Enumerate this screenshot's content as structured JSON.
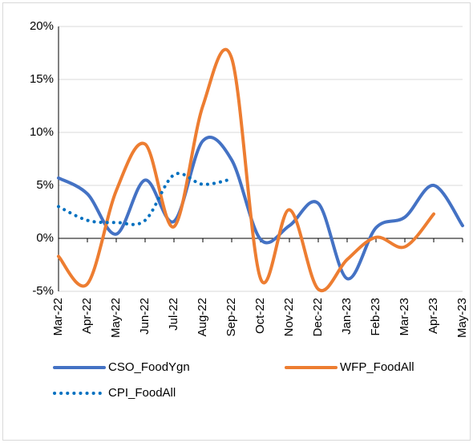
{
  "chart_data": {
    "type": "line",
    "categories": [
      "Mar-22",
      "Apr-22",
      "May-22",
      "Jun-22",
      "Jul-22",
      "Aug-22",
      "Sep-22",
      "Oct-22",
      "Nov-22",
      "Dec-22",
      "Jan-23",
      "Feb-23",
      "Mar-23",
      "Apr-23",
      "May-23"
    ],
    "series": [
      {
        "name": "CSO_FoodYgn",
        "color": "#4472c4",
        "style": "solid",
        "values": [
          5.7,
          4.2,
          0.4,
          5.5,
          1.6,
          9.2,
          7.4,
          -0.1,
          1.2,
          3.3,
          -3.8,
          1.0,
          2.0,
          5.0,
          1.2
        ]
      },
      {
        "name": "WFP_FoodAll",
        "color": "#ed7d31",
        "style": "solid",
        "values": [
          -1.7,
          -4.3,
          4.5,
          8.9,
          1.1,
          12.5,
          17.0,
          -3.8,
          2.7,
          -4.8,
          -2.0,
          0.1,
          -0.8,
          2.3,
          null
        ]
      },
      {
        "name": "CPI_FoodAll",
        "color": "#0070c0",
        "style": "dotted",
        "values": [
          3.0,
          1.7,
          1.5,
          1.7,
          6.0,
          5.1,
          5.6,
          null,
          null,
          null,
          null,
          null,
          null,
          null,
          null
        ]
      }
    ],
    "ylim": [
      -5,
      20
    ],
    "yticks": [
      {
        "value": -5,
        "label": "-5%"
      },
      {
        "value": 0,
        "label": "0%"
      },
      {
        "value": 5,
        "label": "5%"
      },
      {
        "value": 10,
        "label": "10%"
      },
      {
        "value": 15,
        "label": "15%"
      },
      {
        "value": 20,
        "label": "20%"
      }
    ],
    "grid": true,
    "legend": "bottom"
  }
}
